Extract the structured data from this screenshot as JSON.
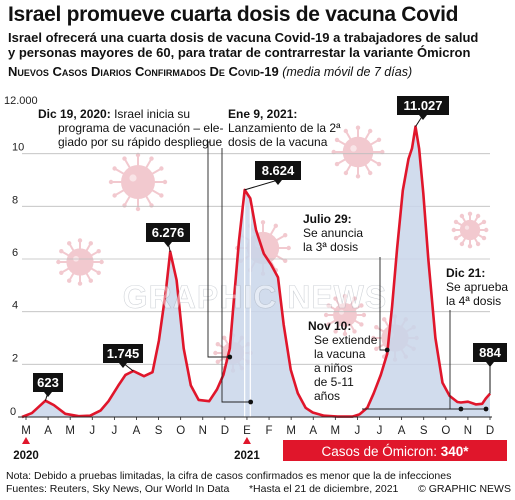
{
  "title": "Israel promueve cuarta dosis de vacuna Covid",
  "subtitle_lines": [
    "Israel ofrecerá una cuarta dosis de vacuna Covid-19 a trabajadores de salud",
    "y personas mayores de 60, para tratar de contrarrestar la variante Ómicron"
  ],
  "chart_heading": "Nuevos Casos Diarios Confirmados De Covid-19",
  "chart_heading_note": "(media móvil de 7 días)",
  "watermark": "GRAPHIC NEWS",
  "colors": {
    "line": "#e0162b",
    "fill": "#c9d6ea",
    "virus": "#f2c9cf",
    "callout_box": "#111111",
    "omicron_bar": "#e0162b"
  },
  "chart_data": {
    "type": "area",
    "title": "Nuevos Casos Diarios Confirmados De Covid-19",
    "subtitle": "(media móvil de 7 días)",
    "y_unit_label": "12.000",
    "yticks": [
      0,
      2,
      4,
      6,
      8,
      10
    ],
    "ylim": [
      0,
      12
    ],
    "xticks": [
      "M",
      "A",
      "M",
      "J",
      "J",
      "A",
      "S",
      "O",
      "N",
      "D",
      "E",
      "F",
      "M",
      "A",
      "M",
      "J",
      "J",
      "A",
      "S",
      "O",
      "N",
      "D"
    ],
    "year_labels": [
      {
        "label": "2020",
        "tick_index": 0
      },
      {
        "label": "2021",
        "tick_index": 10
      }
    ],
    "x_start": "2020-03-01",
    "x_end": "2021-12-21",
    "series": [
      {
        "x": [
          "2020-03-01",
          "2020-03-15",
          "2020-04-03",
          "2020-04-15",
          "2020-05-01",
          "2020-05-20",
          "2020-06-05",
          "2020-06-20",
          "2020-07-01",
          "2020-07-15",
          "2020-07-25",
          "2020-08-05",
          "2020-08-20",
          "2020-09-01",
          "2020-09-10",
          "2020-09-20",
          "2020-09-26",
          "2020-10-05",
          "2020-10-15",
          "2020-10-25",
          "2020-11-05",
          "2020-11-20",
          "2020-12-01",
          "2020-12-10",
          "2020-12-19",
          "2020-12-25",
          "2021-01-01",
          "2021-01-09",
          "2021-01-17",
          "2021-01-25",
          "2021-02-05",
          "2021-02-15",
          "2021-02-25",
          "2021-03-05",
          "2021-03-15",
          "2021-03-25",
          "2021-04-05",
          "2021-04-15",
          "2021-05-01",
          "2021-05-20",
          "2021-06-10",
          "2021-06-20",
          "2021-07-01",
          "2021-07-10",
          "2021-07-20",
          "2021-07-29",
          "2021-08-05",
          "2021-08-12",
          "2021-08-20",
          "2021-08-28",
          "2021-09-02",
          "2021-09-07",
          "2021-09-12",
          "2021-09-18",
          "2021-09-25",
          "2021-10-05",
          "2021-10-15",
          "2021-10-25",
          "2021-11-05",
          "2021-11-10",
          "2021-11-20",
          "2021-12-01",
          "2021-12-10",
          "2021-12-15",
          "2021-12-21"
        ],
        "y": [
          0.0,
          0.15,
          0.62,
          0.45,
          0.12,
          0.03,
          0.05,
          0.25,
          0.6,
          1.2,
          1.6,
          1.745,
          1.55,
          1.7,
          2.9,
          4.8,
          6.276,
          5.2,
          2.6,
          1.2,
          0.65,
          0.6,
          1.05,
          1.6,
          2.6,
          4.5,
          6.7,
          8.624,
          8.3,
          7.1,
          6.2,
          5.8,
          5.3,
          3.5,
          1.8,
          0.9,
          0.35,
          0.17,
          0.05,
          0.015,
          0.015,
          0.1,
          0.35,
          0.9,
          1.6,
          2.4,
          4.2,
          6.4,
          8.6,
          9.8,
          10.2,
          11.027,
          10.2,
          8.5,
          6.0,
          3.0,
          1.3,
          0.8,
          0.57,
          0.55,
          0.58,
          0.48,
          0.5,
          0.7,
          0.884
        ]
      }
    ],
    "callouts": [
      {
        "date": "2020-04-03",
        "value_label": "623"
      },
      {
        "date": "2020-08-05",
        "value_label": "1.745"
      },
      {
        "date": "2020-09-26",
        "value_label": "6.276"
      },
      {
        "date": "2021-01-09",
        "value_label": "8.624"
      },
      {
        "date": "2021-09-07",
        "value_label": "11.027"
      },
      {
        "date": "2021-12-21",
        "value_label": "884"
      }
    ],
    "annotations": [
      {
        "date": "2020-12-19",
        "bold": "Dic 19, 2020:",
        "lines": [
          "Israel inicia su",
          "programa de vacunación – ele-",
          "giado por su rápido despliegue"
        ]
      },
      {
        "date": "2021-01-09",
        "bold": "Ene 9, 2021:",
        "lines": [
          "Lanzamiento de la 2ª",
          "dosis de la vacuna"
        ]
      },
      {
        "date": "2021-07-29",
        "bold": "Julio 29:",
        "lines": [
          "Se anuncia",
          "la 3ª dosis"
        ]
      },
      {
        "date": "2021-11-10",
        "bold": "Nov 10:",
        "lines": [
          "Se extiende",
          "la vacuna",
          "a niños",
          "de 5-11",
          "años"
        ]
      },
      {
        "date": "2021-12-21",
        "bold": "Dic 21:",
        "lines": [
          "Se aprueba",
          "la 4ª dosis"
        ]
      }
    ],
    "omicron_label": "Casos de Ómicron: ",
    "omicron_value": "340*"
  },
  "footer": {
    "note": "Nota: Debido a pruebas limitadas, la cifra de casos confirmados es menor que la de infecciones",
    "sources": "Fuentes: Reuters, Sky News, Our World In Data",
    "as_of": "*Hasta el 21 de diciembre, 2021",
    "credit": "© GRAPHIC NEWS"
  }
}
